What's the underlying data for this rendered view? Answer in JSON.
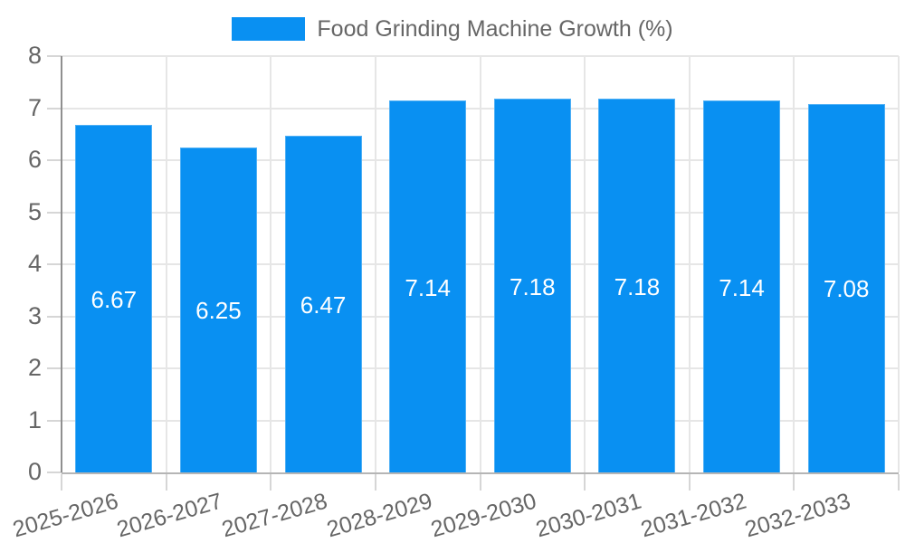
{
  "legend": {
    "label": "Food Grinding Machine Growth (%)"
  },
  "chart_data": {
    "type": "bar",
    "title": "",
    "categories": [
      "2025-2026",
      "2026-2027",
      "2027-2028",
      "2028-2029",
      "2029-2030",
      "2030-2031",
      "2031-2032",
      "2032-2033"
    ],
    "values": [
      6.67,
      6.25,
      6.47,
      7.14,
      7.18,
      7.18,
      7.14,
      7.08
    ],
    "value_labels": [
      "6.67",
      "6.25",
      "6.47",
      "7.14",
      "7.18",
      "7.18",
      "7.14",
      "7.08"
    ],
    "ytick_labels": [
      "0",
      "1",
      "2",
      "3",
      "4",
      "5",
      "6",
      "7",
      "8"
    ],
    "xlabel": "",
    "ylabel": "",
    "ylim": [
      0,
      8
    ],
    "ytick_step": 1,
    "grid": true,
    "legend_entries": [
      "Food Grinding Machine Growth (%)"
    ],
    "legend_position": "top-center",
    "colors": {
      "bar_fill": "#0990f2",
      "bar_border": "#4fb0f5",
      "value_label_text": "#ffffff",
      "axis_text": "#666666",
      "gridline": "#e6e6e6",
      "axis_line_left": "#8f8f8f",
      "axis_line_bottom": "#b5b5b5",
      "tick_mark": "#d6d6d6"
    }
  }
}
